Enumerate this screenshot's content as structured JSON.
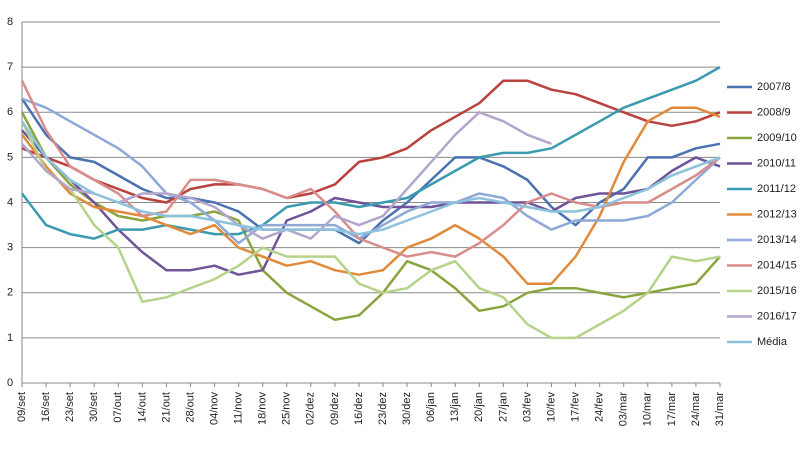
{
  "chart_data": {
    "type": "line",
    "categories": [
      "09/set",
      "16/set",
      "23/set",
      "30/set",
      "07/out",
      "14/out",
      "21/out",
      "28/out",
      "04/nov",
      "11/nov",
      "18/nov",
      "25/nov",
      "02/dez",
      "09/dez",
      "16/dez",
      "23/dez",
      "30/dez",
      "06/jan",
      "13/jan",
      "20/jan",
      "27/jan",
      "03/fev",
      "10/fev",
      "17/fev",
      "24/fev",
      "03/mar",
      "10/mar",
      "17/mar",
      "24/mar",
      "31/mar"
    ],
    "ylim": [
      0,
      8
    ],
    "yticks": [
      0,
      1,
      2,
      3,
      4,
      5,
      6,
      7,
      8
    ],
    "grid": true,
    "legend": "right",
    "series": [
      {
        "name": "2007/8",
        "color": "#4a72b0",
        "values": [
          6.3,
          5.5,
          5.0,
          4.9,
          4.6,
          4.3,
          4.1,
          4.1,
          4.0,
          3.8,
          3.4,
          3.4,
          3.4,
          3.4,
          3.1,
          3.6,
          4.0,
          4.5,
          5.0,
          5.0,
          4.8,
          4.5,
          3.9,
          3.5,
          4.0,
          4.3,
          5.0,
          5.0,
          5.2,
          5.3
        ]
      },
      {
        "name": "2008/9",
        "color": "#b9413e",
        "values": [
          5.2,
          5.0,
          4.8,
          4.5,
          4.3,
          4.1,
          4.0,
          4.3,
          4.4,
          4.4,
          4.3,
          4.1,
          4.2,
          4.4,
          4.9,
          5.0,
          5.2,
          5.6,
          5.9,
          6.2,
          6.7,
          6.7,
          6.5,
          6.4,
          6.2,
          6.0,
          5.8,
          5.7,
          5.8,
          6.0
        ]
      },
      {
        "name": "2009/10",
        "color": "#8aa43e",
        "values": [
          6.0,
          5.0,
          4.4,
          4.0,
          3.7,
          3.6,
          3.7,
          3.7,
          3.8,
          3.6,
          2.5,
          2.0,
          1.7,
          1.4,
          1.5,
          2.0,
          2.7,
          2.5,
          2.1,
          1.6,
          1.7,
          2.0,
          2.1,
          2.1,
          2.0,
          1.9,
          2.0,
          2.1,
          2.2,
          2.8
        ]
      },
      {
        "name": "2010/11",
        "color": "#6f549a",
        "values": [
          5.6,
          5.0,
          4.5,
          4.0,
          3.4,
          2.9,
          2.5,
          2.5,
          2.6,
          2.4,
          2.5,
          3.6,
          3.8,
          4.1,
          4.0,
          3.9,
          3.9,
          3.9,
          4.0,
          4.0,
          4.0,
          4.0,
          3.8,
          4.1,
          4.2,
          4.2,
          4.3,
          4.7,
          5.0,
          4.8
        ]
      },
      {
        "name": "2011/12",
        "color": "#3a9bb0",
        "values": [
          4.2,
          3.5,
          3.3,
          3.2,
          3.4,
          3.4,
          3.5,
          3.4,
          3.3,
          3.3,
          3.5,
          3.9,
          4.0,
          4.0,
          3.9,
          4.0,
          4.1,
          4.4,
          4.7,
          5.0,
          5.1,
          5.1,
          5.2,
          5.5,
          5.8,
          6.1,
          6.3,
          6.5,
          6.7,
          7.0
        ]
      },
      {
        "name": "2012/13",
        "color": "#e08a3a",
        "values": [
          5.5,
          4.8,
          4.2,
          3.9,
          3.8,
          3.7,
          3.5,
          3.3,
          3.5,
          3.0,
          2.8,
          2.6,
          2.7,
          2.5,
          2.4,
          2.5,
          3.0,
          3.2,
          3.5,
          3.2,
          2.8,
          2.2,
          2.2,
          2.8,
          3.7,
          4.9,
          5.8,
          6.1,
          6.1,
          5.9
        ]
      },
      {
        "name": "2013/14",
        "color": "#8ea8d8",
        "values": [
          6.3,
          6.1,
          5.8,
          5.5,
          5.2,
          4.8,
          4.2,
          4.0,
          3.6,
          3.1,
          3.5,
          3.5,
          3.5,
          3.5,
          3.2,
          3.5,
          3.8,
          4.0,
          4.0,
          4.2,
          4.1,
          3.7,
          3.4,
          3.6,
          3.6,
          3.6,
          3.7,
          4.0,
          4.5,
          5.0
        ]
      },
      {
        "name": "2014/15",
        "color": "#d98d8a",
        "values": [
          6.7,
          5.6,
          4.8,
          4.5,
          4.2,
          3.7,
          3.8,
          4.5,
          4.5,
          4.4,
          4.3,
          4.1,
          4.3,
          3.8,
          3.2,
          3.0,
          2.8,
          2.9,
          2.8,
          3.1,
          3.5,
          4.0,
          4.2,
          4.0,
          3.9,
          4.0,
          4.0,
          4.3,
          4.6,
          5.0
        ]
      },
      {
        "name": "2015/16",
        "color": "#b5d38a",
        "values": [
          5.8,
          4.7,
          4.3,
          3.5,
          3.0,
          1.8,
          1.9,
          2.1,
          2.3,
          2.6,
          3.0,
          2.8,
          2.8,
          2.8,
          2.2,
          2.0,
          2.1,
          2.5,
          2.7,
          2.1,
          1.9,
          1.3,
          1.0,
          1.0,
          1.3,
          1.6,
          2.0,
          2.8,
          2.7,
          2.8
        ]
      },
      {
        "name": "2016/17",
        "color": "#b3a5cc",
        "values": [
          5.3,
          4.7,
          4.3,
          4.2,
          4.0,
          4.2,
          4.2,
          4.1,
          3.9,
          3.5,
          3.2,
          3.4,
          3.2,
          3.7,
          3.5,
          3.7,
          4.3,
          4.9,
          5.5,
          6.0,
          5.8,
          5.5,
          5.3,
          null,
          null,
          null,
          null,
          null,
          null,
          null
        ]
      },
      {
        "name": "Média",
        "color": "#8cc3dc",
        "values": [
          5.8,
          5.0,
          4.5,
          4.2,
          4.0,
          3.8,
          3.7,
          3.7,
          3.6,
          3.5,
          3.4,
          3.4,
          3.4,
          3.4,
          3.3,
          3.4,
          3.6,
          3.8,
          4.0,
          4.1,
          4.0,
          3.9,
          3.8,
          3.8,
          3.9,
          4.1,
          4.3,
          4.6,
          4.8,
          5.0
        ]
      }
    ]
  }
}
